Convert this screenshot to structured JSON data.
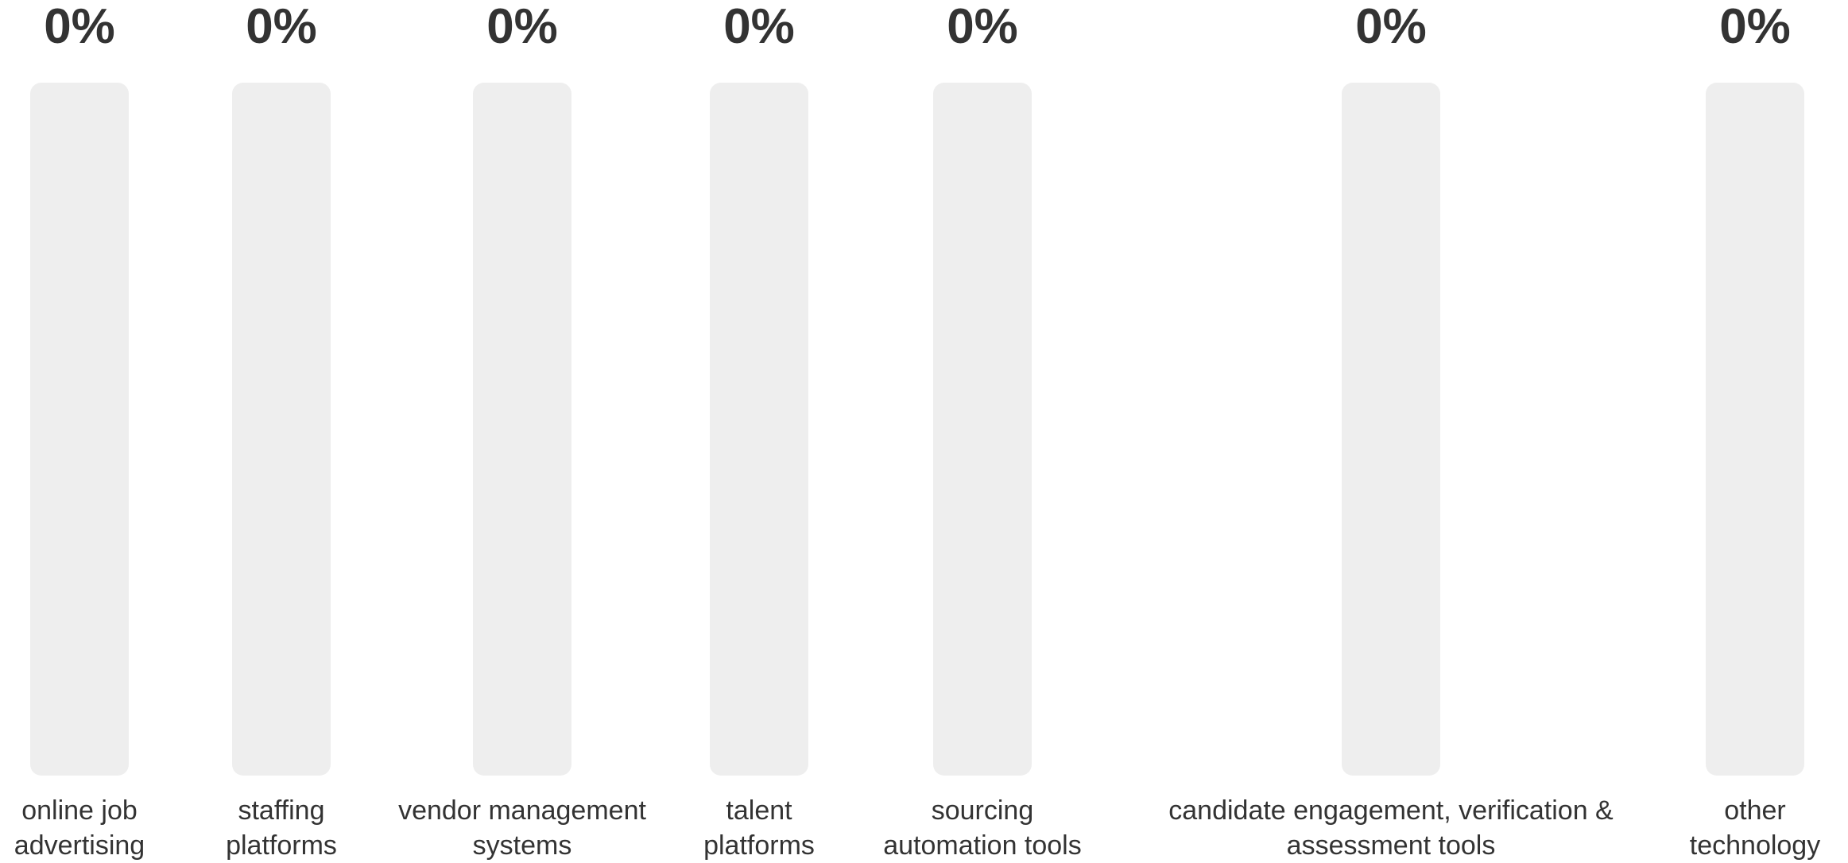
{
  "chart_data": {
    "type": "bar",
    "categories": [
      "online job\nadvertising",
      "staffing\nplatforms",
      "vendor management\nsystems",
      "talent\nplatforms",
      "sourcing\nautomation tools",
      "candidate engagement, verification &\nassessment tools",
      "other\ntechnology"
    ],
    "values": [
      0,
      0,
      0,
      0,
      0,
      0,
      0
    ],
    "value_labels": [
      "0%",
      "0%",
      "0%",
      "0%",
      "0%",
      "0%",
      "0%"
    ],
    "ylim": [
      0,
      100
    ],
    "colors": {
      "track": "#eeeeee",
      "fill": "#9e9e9e",
      "text": "#333333"
    }
  }
}
